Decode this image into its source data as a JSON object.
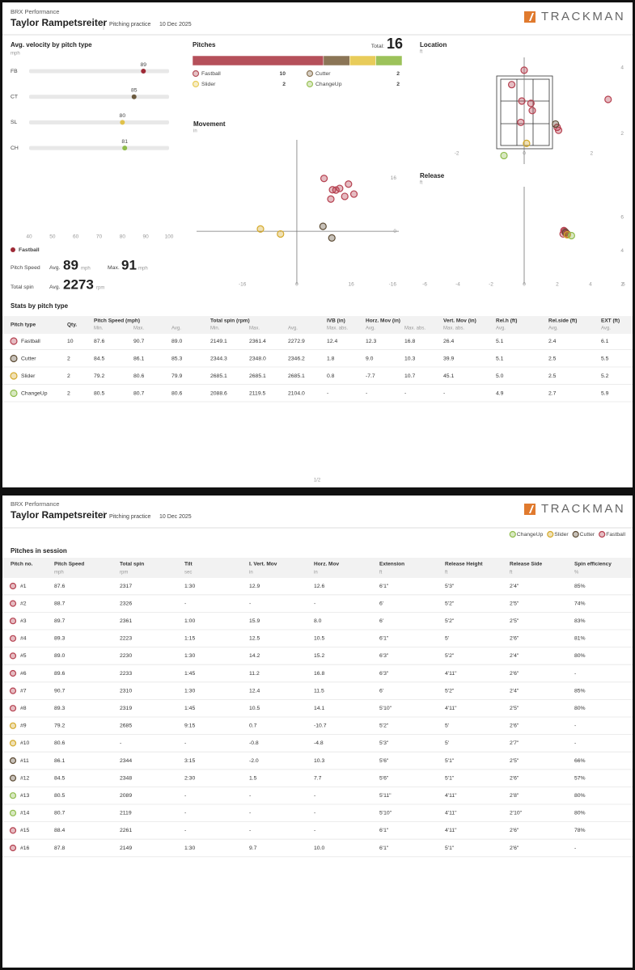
{
  "page1": {
    "header": {
      "org": "BRX Performance",
      "player": "Taylor Rampetsreiter",
      "session": "Pitching practice",
      "date": "10 Dec 2025",
      "brand": "TRACKMAN"
    },
    "velocity": {
      "title": "Avg. velocity by pitch type",
      "unit": "mph",
      "categories": [
        "FB",
        "CT",
        "SL",
        "CH"
      ],
      "values": [
        89,
        85,
        80,
        81
      ],
      "colors": [
        "#9e2a36",
        "#6b5a3e",
        "#e0c14a",
        "#8fbc4c"
      ],
      "xlim": [
        40,
        100
      ],
      "xticks": [
        40,
        50,
        60,
        70,
        80,
        90,
        100
      ]
    },
    "summary": {
      "pitch": "Fastball",
      "color": "#9e2a36",
      "speed_label": "Pitch Speed",
      "avg_label": "Avg.",
      "avg_speed": 89,
      "speed_unit": "mph",
      "max_label": "Max.",
      "max_speed": 91,
      "spin_label": "Total spin",
      "avg_spin": 2273,
      "spin_unit": "rpm"
    },
    "pitches": {
      "title": "Pitches",
      "total_label": "Total:",
      "total": 16,
      "series": [
        {
          "name": "Fastball",
          "count": 10,
          "color": "#b5505a"
        },
        {
          "name": "Cutter",
          "count": 2,
          "color": "#8b7556"
        },
        {
          "name": "Slider",
          "count": 2,
          "color": "#e8cc5a"
        },
        {
          "name": "ChangeUp",
          "count": 2,
          "color": "#9cc25a"
        }
      ]
    },
    "movement": {
      "title": "Movement",
      "unit": "in",
      "xlim": [
        -29.5,
        30
      ],
      "ylim": [
        -16,
        27.5
      ],
      "xticks": [
        -16,
        0,
        16
      ],
      "yticks": [
        16,
        0,
        -16
      ],
      "series": [
        {
          "color": "#b5404f",
          "x": [
            12.6,
            8.0,
            10.5,
            15.2,
            16.8,
            11.5,
            14.1,
            10.0
          ],
          "y": [
            12.9,
            15.9,
            12.5,
            14.2,
            11.2,
            12.4,
            10.5,
            9.7
          ]
        },
        {
          "color": "#5e4d36",
          "x": [
            10.3,
            7.7
          ],
          "y": [
            -2.0,
            1.5
          ]
        },
        {
          "color": "#d4a92a",
          "x": [
            -10.7,
            -4.8
          ],
          "y": [
            0.7,
            -0.8
          ]
        }
      ]
    },
    "location": {
      "title": "Location",
      "unit": "ft",
      "xlim": [
        -3,
        3
      ],
      "ylim": [
        1.07,
        4.32
      ],
      "xticks": [
        -2,
        0,
        2
      ],
      "yticks": [
        4,
        2
      ],
      "series": [
        {
          "color": "#b5404f",
          "x": [
            0.0,
            -0.37,
            -0.07,
            0.2,
            0.24,
            2.49,
            -0.1,
            0.98,
            1.02
          ],
          "y": [
            3.93,
            3.49,
            2.99,
            2.92,
            2.7,
            3.04,
            2.34,
            2.19,
            2.1
          ]
        },
        {
          "color": "#5e4d36",
          "x": [
            0.93
          ],
          "y": [
            2.29
          ]
        },
        {
          "color": "#d4a92a",
          "x": [
            0.07
          ],
          "y": [
            1.7
          ]
        },
        {
          "color": "#8fbc4c",
          "x": [
            -0.6
          ],
          "y": [
            1.33
          ]
        }
      ]
    },
    "release": {
      "title": "Release",
      "unit": "ft",
      "xlim": [
        -6.1,
        6.1
      ],
      "ylim": [
        2,
        7.8
      ],
      "xticks": [
        -6,
        -4,
        -2,
        0,
        2,
        4,
        6
      ],
      "yticks": [
        6,
        4,
        2
      ],
      "series": [
        {
          "color": "#b5404f",
          "x": [
            2.4,
            2.45,
            2.5,
            2.35,
            2.6
          ],
          "y": [
            5.2,
            5.15,
            5.05,
            5.0,
            5.0
          ]
        },
        {
          "color": "#5e4d36",
          "x": [
            2.5
          ],
          "y": [
            5.1
          ]
        },
        {
          "color": "#d4a92a",
          "x": [
            2.6
          ],
          "y": [
            4.95
          ]
        },
        {
          "color": "#8fbc4c",
          "x": [
            2.85
          ],
          "y": [
            4.9
          ]
        }
      ]
    },
    "stats": {
      "title": "Stats by pitch type",
      "columns": [
        {
          "label": "Pitch type"
        },
        {
          "label": "Qty."
        },
        {
          "label": "Pitch Speed (mph)",
          "sub": [
            "Min.",
            "Max.",
            "Avg."
          ]
        },
        {
          "label": "Total spin (rpm)",
          "sub": [
            "Min.",
            "Max.",
            "Avg."
          ]
        },
        {
          "label": "IVB (in)",
          "sub": [
            "Max. abs."
          ]
        },
        {
          "label": "Horz. Mov (in)",
          "sub": [
            "Avg.",
            "Max. abs."
          ]
        },
        {
          "label": "Vert. Mov (in)",
          "sub": [
            "Max. abs."
          ]
        },
        {
          "label": "Rel.h (ft)",
          "sub": [
            "Avg."
          ]
        },
        {
          "label": "Rel.side (ft)",
          "sub": [
            "Avg."
          ]
        },
        {
          "label": "EXT (ft)",
          "sub": [
            "Avg."
          ]
        }
      ],
      "rows": [
        {
          "color": "#b5404f",
          "cells": [
            "Fastball",
            "10",
            "87.6",
            "90.7",
            "89.0",
            "2149.1",
            "2361.4",
            "2272.9",
            "12.4",
            "12.3",
            "16.8",
            "26.4",
            "5.1",
            "2.4",
            "6.1"
          ]
        },
        {
          "color": "#5e4d36",
          "cells": [
            "Cutter",
            "2",
            "84.5",
            "86.1",
            "85.3",
            "2344.3",
            "2348.0",
            "2346.2",
            "1.8",
            "9.0",
            "10.3",
            "39.9",
            "5.1",
            "2.5",
            "5.5"
          ]
        },
        {
          "color": "#d4a92a",
          "cells": [
            "Slider",
            "2",
            "79.2",
            "80.6",
            "79.9",
            "2685.1",
            "2685.1",
            "2685.1",
            "0.8",
            "-7.7",
            "10.7",
            "45.1",
            "5.0",
            "2.5",
            "5.2"
          ]
        },
        {
          "color": "#8fbc4c",
          "cells": [
            "ChangeUp",
            "2",
            "80.5",
            "80.7",
            "80.6",
            "2088.6",
            "2119.5",
            "2104.0",
            "-",
            "-",
            "-",
            "-",
            "4.9",
            "2.7",
            "5.9"
          ]
        }
      ]
    },
    "page_number": "1/2"
  },
  "page2": {
    "header": {
      "org": "BRX Performance",
      "player": "Taylor Rampetsreiter",
      "session": "Pitching practice",
      "date": "10 Dec 2025",
      "brand": "TRACKMAN"
    },
    "legend": [
      {
        "name": "ChangeUp",
        "color": "#8fbc4c"
      },
      {
        "name": "Slider",
        "color": "#d4a92a"
      },
      {
        "name": "Cutter",
        "color": "#5e4d36"
      },
      {
        "name": "Fastball",
        "color": "#b5404f"
      }
    ],
    "table": {
      "title": "Pitches in session",
      "columns": [
        {
          "label": "Pitch no."
        },
        {
          "label": "Pitch Speed",
          "unit": "mph"
        },
        {
          "label": "Total spin",
          "unit": "rpm"
        },
        {
          "label": "Tilt",
          "unit": "sec"
        },
        {
          "label": "I. Vert. Mov",
          "unit": "in"
        },
        {
          "label": "Horz. Mov",
          "unit": "in"
        },
        {
          "label": "Extension",
          "unit": "ft"
        },
        {
          "label": "Release Height",
          "unit": "ft"
        },
        {
          "label": "Release Side",
          "unit": "ft"
        },
        {
          "label": "Spin efficiency",
          "unit": "%"
        }
      ],
      "rows": [
        {
          "color": "#b5404f",
          "cells": [
            "#1",
            "87.6",
            "2317",
            "1:30",
            "12.9",
            "12.6",
            "6'1\"",
            "5'3\"",
            "2'4\"",
            "85%"
          ]
        },
        {
          "color": "#b5404f",
          "cells": [
            "#2",
            "88.7",
            "2326",
            "-",
            "-",
            "-",
            "6'",
            "5'2\"",
            "2'5\"",
            "74%"
          ]
        },
        {
          "color": "#b5404f",
          "cells": [
            "#3",
            "89.7",
            "2361",
            "1:00",
            "15.9",
            "8.0",
            "6'",
            "5'2\"",
            "2'5\"",
            "83%"
          ]
        },
        {
          "color": "#b5404f",
          "cells": [
            "#4",
            "89.3",
            "2223",
            "1:15",
            "12.5",
            "10.5",
            "6'1\"",
            "5'",
            "2'6\"",
            "81%"
          ]
        },
        {
          "color": "#b5404f",
          "cells": [
            "#5",
            "89.0",
            "2230",
            "1:30",
            "14.2",
            "15.2",
            "6'3\"",
            "5'2\"",
            "2'4\"",
            "80%"
          ]
        },
        {
          "color": "#b5404f",
          "cells": [
            "#6",
            "89.6",
            "2233",
            "1:45",
            "11.2",
            "16.8",
            "6'3\"",
            "4'11\"",
            "2'6\"",
            "-"
          ]
        },
        {
          "color": "#b5404f",
          "cells": [
            "#7",
            "90.7",
            "2310",
            "1:30",
            "12.4",
            "11.5",
            "6'",
            "5'2\"",
            "2'4\"",
            "85%"
          ]
        },
        {
          "color": "#b5404f",
          "cells": [
            "#8",
            "89.3",
            "2319",
            "1:45",
            "10.5",
            "14.1",
            "5'10\"",
            "4'11\"",
            "2'5\"",
            "80%"
          ]
        },
        {
          "color": "#d4a92a",
          "cells": [
            "#9",
            "79.2",
            "2685",
            "9:15",
            "0.7",
            "-10.7",
            "5'2\"",
            "5'",
            "2'6\"",
            "-"
          ]
        },
        {
          "color": "#d4a92a",
          "cells": [
            "#10",
            "80.6",
            "-",
            "-",
            "-0.8",
            "-4.8",
            "5'3\"",
            "5'",
            "2'7\"",
            "-"
          ]
        },
        {
          "color": "#5e4d36",
          "cells": [
            "#11",
            "86.1",
            "2344",
            "3:15",
            "-2.0",
            "10.3",
            "5'6\"",
            "5'1\"",
            "2'5\"",
            "66%"
          ]
        },
        {
          "color": "#5e4d36",
          "cells": [
            "#12",
            "84.5",
            "2348",
            "2:30",
            "1.5",
            "7.7",
            "5'6\"",
            "5'1\"",
            "2'6\"",
            "57%"
          ]
        },
        {
          "color": "#8fbc4c",
          "cells": [
            "#13",
            "80.5",
            "2089",
            "-",
            "-",
            "-",
            "5'11\"",
            "4'11\"",
            "2'8\"",
            "80%"
          ]
        },
        {
          "color": "#8fbc4c",
          "cells": [
            "#14",
            "80.7",
            "2119",
            "-",
            "-",
            "-",
            "5'10\"",
            "4'11\"",
            "2'10\"",
            "80%"
          ]
        },
        {
          "color": "#b5404f",
          "cells": [
            "#15",
            "88.4",
            "2261",
            "-",
            "-",
            "-",
            "6'1\"",
            "4'11\"",
            "2'6\"",
            "78%"
          ]
        },
        {
          "color": "#b5404f",
          "cells": [
            "#16",
            "87.8",
            "2149",
            "1:30",
            "9.7",
            "10.0",
            "6'1\"",
            "5'1\"",
            "2'6\"",
            "-"
          ]
        }
      ]
    }
  }
}
